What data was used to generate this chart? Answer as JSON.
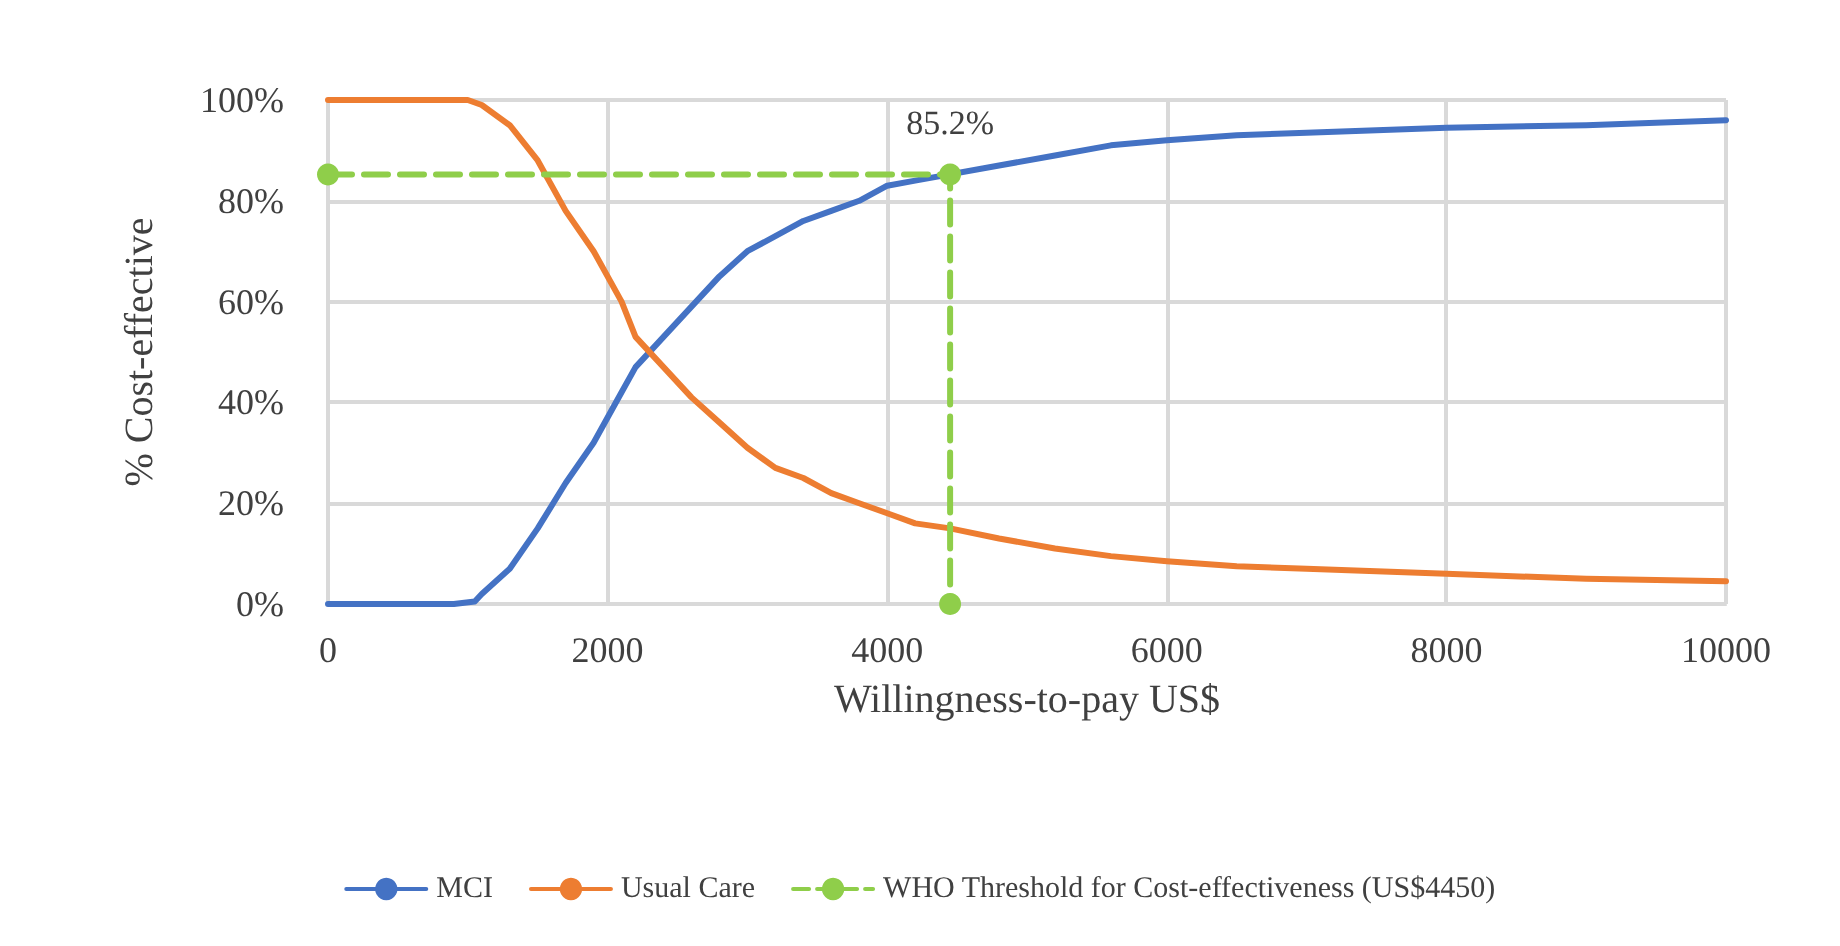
{
  "chart_data": {
    "type": "line",
    "xlabel": "Willingness-to-pay US$",
    "ylabel": "% Cost-effective",
    "xlim": [
      0,
      10000
    ],
    "xticks": [
      0,
      2000,
      4000,
      6000,
      8000,
      10000
    ],
    "ylim": [
      0,
      100
    ],
    "yticks": [
      {
        "value": 0,
        "label": "0%"
      },
      {
        "value": 20,
        "label": "20%"
      },
      {
        "value": 40,
        "label": "40%"
      },
      {
        "value": 60,
        "label": "60%"
      },
      {
        "value": 80,
        "label": "80%"
      },
      {
        "value": 100,
        "label": "100%"
      }
    ],
    "grid": true,
    "legend": "bottom",
    "marker": "none",
    "series": [
      {
        "name": "MCI",
        "color": "#4472c4",
        "x": [
          0,
          900,
          1050,
          1100,
          1300,
          1500,
          1700,
          1900,
          2100,
          2200,
          2400,
          2600,
          2800,
          3000,
          3200,
          3400,
          3600,
          3800,
          4000,
          4200,
          4800,
          5200,
          5600,
          6000,
          6500,
          7000,
          7500,
          8000,
          9000,
          10000
        ],
        "values": [
          0,
          0,
          0.5,
          2,
          7,
          15,
          24,
          32,
          42,
          47,
          53,
          59,
          65,
          70,
          73,
          76,
          78,
          80,
          83,
          84,
          87,
          89,
          91,
          92,
          93,
          93.5,
          94,
          94.5,
          95,
          96
        ]
      },
      {
        "name": "Usual Care",
        "color": "#ed7d31",
        "x": [
          0,
          1000,
          1100,
          1300,
          1500,
          1700,
          1900,
          2100,
          2200,
          2400,
          2600,
          2800,
          3000,
          3200,
          3400,
          3600,
          3800,
          4000,
          4200,
          4450,
          4800,
          5200,
          5600,
          6000,
          6500,
          7000,
          7500,
          8000,
          9000,
          10000
        ],
        "values": [
          100,
          100,
          99,
          95,
          88,
          78,
          70,
          60,
          53,
          47,
          41,
          36,
          31,
          27,
          25,
          22,
          20,
          18,
          16,
          15,
          13,
          11,
          9.5,
          8.5,
          7.5,
          7,
          6.5,
          6,
          5,
          4.5
        ]
      },
      {
        "name": "WHO Threshold for Cost-effectiveness (US$4450)",
        "color": "#8fce4a",
        "line_style": "dashed",
        "marker": "circle",
        "x": [
          0,
          4450,
          4450
        ],
        "values": [
          85.2,
          85.2,
          0
        ],
        "value_labels": [
          null,
          "85.2%",
          null
        ]
      }
    ]
  }
}
